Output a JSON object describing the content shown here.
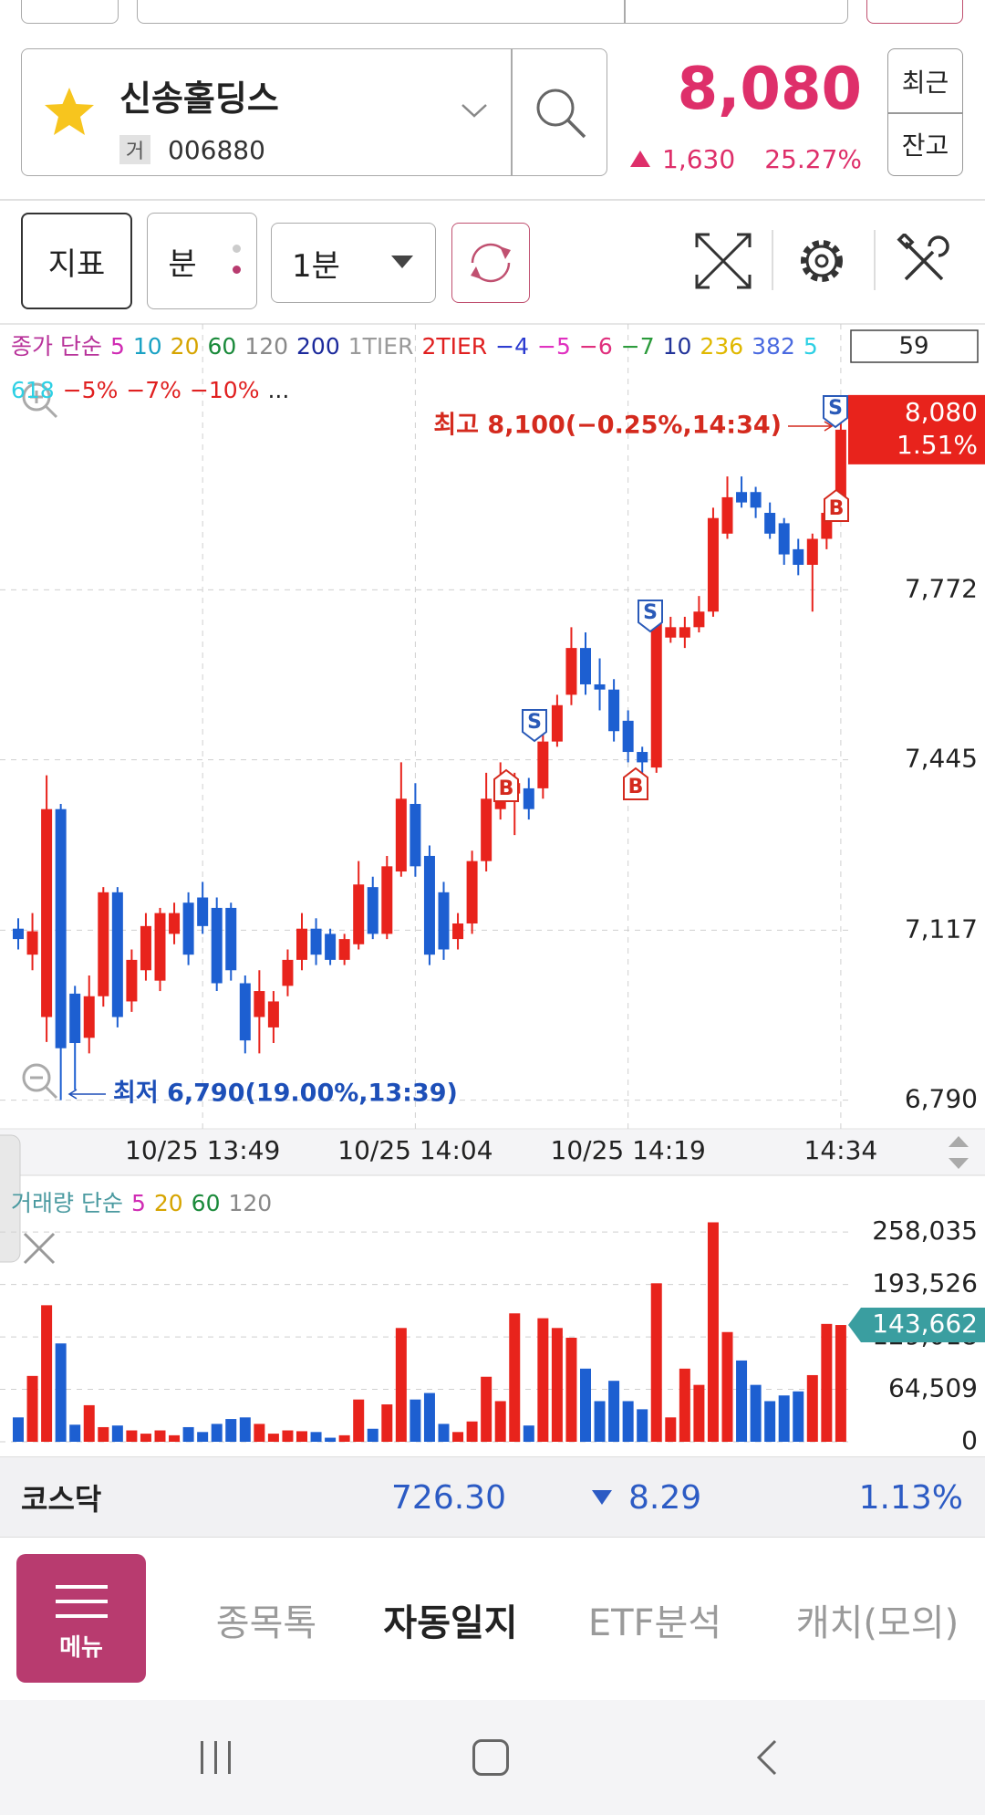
{
  "stock": {
    "name": "신송홀딩스",
    "market_badge": "거",
    "code": "006880",
    "price": "8,080",
    "change": "1,630",
    "change_rate": "25.27%"
  },
  "side_buttons": [
    "최근",
    "잔고"
  ],
  "toolbar": {
    "indicator": "지표",
    "period_type": "분",
    "interval": "1분"
  },
  "chart_data": [
    {
      "type": "candlestick",
      "categories": [
        null,
        null,
        null,
        null,
        null,
        null,
        null,
        null,
        null,
        null,
        null,
        null,
        null,
        "10/25 13:49",
        null,
        null,
        null,
        null,
        null,
        null,
        null,
        null,
        null,
        null,
        null,
        null,
        null,
        null,
        "10/25 14:04",
        null,
        null,
        null,
        null,
        null,
        null,
        null,
        null,
        null,
        null,
        null,
        null,
        null,
        null,
        "10/25 14:19",
        null,
        null,
        null,
        null,
        null,
        null,
        null,
        null,
        null,
        null,
        null,
        null,
        null,
        null,
        "14:34"
      ],
      "open": [
        7120,
        7070,
        6950,
        7350,
        6995,
        6910,
        6990,
        7190,
        6980,
        7040,
        7020,
        7110,
        7170,
        7180,
        7160,
        7160,
        7015,
        6950,
        6930,
        7010,
        7060,
        7120,
        7110,
        7060,
        7090,
        7200,
        7110,
        7230,
        7360,
        7260,
        7190,
        7100,
        7130,
        7250,
        7350,
        7380,
        7390,
        7390,
        7480,
        7570,
        7660,
        7590,
        7580,
        7520,
        7460,
        7430,
        7680,
        7680,
        7700,
        7730,
        7880,
        7960,
        7960,
        7920,
        7900,
        7850,
        7820,
        7870,
        7920
      ],
      "high": [
        7140,
        7150,
        7415,
        7360,
        7010,
        7030,
        7200,
        7200,
        7080,
        7150,
        7160,
        7170,
        7190,
        7210,
        7180,
        7170,
        7030,
        7040,
        7000,
        7080,
        7150,
        7140,
        7120,
        7110,
        7250,
        7220,
        7260,
        7440,
        7400,
        7280,
        7210,
        7150,
        7270,
        7420,
        7440,
        7420,
        7410,
        7520,
        7570,
        7700,
        7690,
        7640,
        7600,
        7540,
        7470,
        7740,
        7720,
        7720,
        7760,
        7930,
        7990,
        7990,
        7970,
        7940,
        7910,
        7870,
        7880,
        7940,
        8100
      ],
      "low": [
        7080,
        7040,
        6902,
        6790,
        6810,
        6880,
        6970,
        6930,
        6960,
        7020,
        7000,
        7090,
        7050,
        7110,
        7000,
        7020,
        6880,
        6880,
        6900,
        6990,
        7040,
        7050,
        7050,
        7050,
        7080,
        7100,
        7100,
        7220,
        7220,
        7050,
        7060,
        7080,
        7110,
        7230,
        7330,
        7300,
        7330,
        7370,
        7470,
        7550,
        7570,
        7540,
        7480,
        7440,
        7420,
        7420,
        7670,
        7660,
        7690,
        7720,
        7870,
        7930,
        7910,
        7870,
        7820,
        7800,
        7730,
        7850,
        7910
      ],
      "close": [
        7100,
        7115,
        7350,
        6890,
        6900,
        6990,
        7190,
        6950,
        7060,
        7125,
        7150,
        7150,
        7070,
        7125,
        7015,
        7040,
        6905,
        7000,
        6980,
        7060,
        7120,
        7070,
        7060,
        7100,
        7205,
        7110,
        7240,
        7370,
        7240,
        7070,
        7080,
        7130,
        7250,
        7370,
        7410,
        7400,
        7350,
        7480,
        7550,
        7660,
        7590,
        7580,
        7500,
        7460,
        7440,
        7710,
        7700,
        7700,
        7730,
        7910,
        7950,
        7940,
        7930,
        7880,
        7840,
        7820,
        7870,
        7920,
        8080
      ],
      "up_color": "#e8231c",
      "down_color": "#1d5fd1",
      "ylim": [
        6735,
        8150
      ],
      "yticks": [
        {
          "value": 6790,
          "label": "6,790"
        },
        {
          "value": 7117,
          "label": "7,117"
        },
        {
          "value": 7445,
          "label": "7,445"
        },
        {
          "value": 7772,
          "label": "7,772"
        }
      ],
      "grid": true,
      "indicators": [
        {
          "text": "종가 단순",
          "color": "#b8329a"
        },
        {
          "text": "5",
          "color": "#d02cb4"
        },
        {
          "text": "10",
          "color": "#1aa2c4"
        },
        {
          "text": "20",
          "color": "#d6a400"
        },
        {
          "text": "60",
          "color": "#1a8a3a"
        },
        {
          "text": "120",
          "color": "#888888"
        },
        {
          "text": "200",
          "color": "#1c2a9c"
        },
        {
          "text": "1TIER",
          "color": "#9a9a9a"
        },
        {
          "text": "2TIER",
          "color": "#e02020"
        },
        {
          "text": "−4",
          "color": "#2a3ad0"
        },
        {
          "text": "−5",
          "color": "#e030c0"
        },
        {
          "text": "−6",
          "color": "#e0307e"
        },
        {
          "text": "−7",
          "color": "#2a9a3a"
        },
        {
          "text": "10",
          "color": "#223399"
        },
        {
          "text": "236",
          "color": "#e0b800"
        },
        {
          "text": "382",
          "color": "#4a6ae0"
        },
        {
          "text": "5",
          "color": "#2ed0e4"
        },
        {
          "text": "618",
          "color": "#2ed0e4"
        },
        {
          "text": "−5%",
          "color": "#e02020"
        },
        {
          "text": "−7%",
          "color": "#e02020"
        },
        {
          "text": "−10%",
          "color": "#e02020"
        },
        {
          "text": "...",
          "color": "#222222"
        }
      ],
      "visible_bars": 59,
      "annotations": [
        {
          "text": "최고 8,100(−0.25%,14:34)",
          "color": "#d42a1e"
        },
        {
          "text": "최저 6,790(19.00%,13:39)",
          "color": "#1d4fb8"
        }
      ],
      "current": {
        "value": 8080,
        "label": "8,080",
        "change": "1.51%",
        "color": "#e8231c"
      },
      "signals": [
        "S",
        "B",
        "S",
        "S",
        "B",
        "B"
      ]
    },
    {
      "type": "bar",
      "values": [
        30000,
        81000,
        168000,
        121000,
        21000,
        45000,
        18000,
        20000,
        14000,
        10000,
        14000,
        8000,
        18000,
        12000,
        22000,
        28000,
        30000,
        22000,
        10000,
        14000,
        13000,
        12000,
        5000,
        8000,
        52000,
        16000,
        46000,
        140000,
        52000,
        60000,
        22000,
        12000,
        25000,
        80000,
        50000,
        158000,
        20000,
        152000,
        140000,
        128000,
        90000,
        50000,
        75000,
        50000,
        40000,
        195000,
        30000,
        90000,
        70000,
        270000,
        135000,
        100000,
        70000,
        50000,
        57000,
        62000,
        82000,
        145000,
        143662
      ],
      "ylim": [
        0,
        306500
      ],
      "yticks": [
        0,
        {
          "value": 64509,
          "label": "64,509"
        },
        {
          "value": 129018,
          "label": "129,018"
        },
        {
          "value": 193526,
          "label": "193,526"
        },
        {
          "value": 258035,
          "label": "258,035"
        }
      ],
      "grid": true,
      "indicators": [
        {
          "text": "거래량 단순",
          "color": "#4a9aa0"
        },
        {
          "text": "5",
          "color": "#d02cb4"
        },
        {
          "text": "20",
          "color": "#d6a400"
        },
        {
          "text": "60",
          "color": "#1a8a3a"
        },
        {
          "text": "120",
          "color": "#888888"
        }
      ],
      "current": {
        "value": 143662,
        "label": "143,662",
        "color": "#3a9ea0"
      }
    }
  ],
  "market": {
    "name": "코스닥",
    "index": "726.30",
    "change": "8.29",
    "change_rate": "1.13%"
  },
  "nav": {
    "menu": "메뉴",
    "tabs": [
      "종목톡",
      "자동일지",
      "ETF분석",
      "캐치(모의)"
    ],
    "active_tab": 1
  }
}
